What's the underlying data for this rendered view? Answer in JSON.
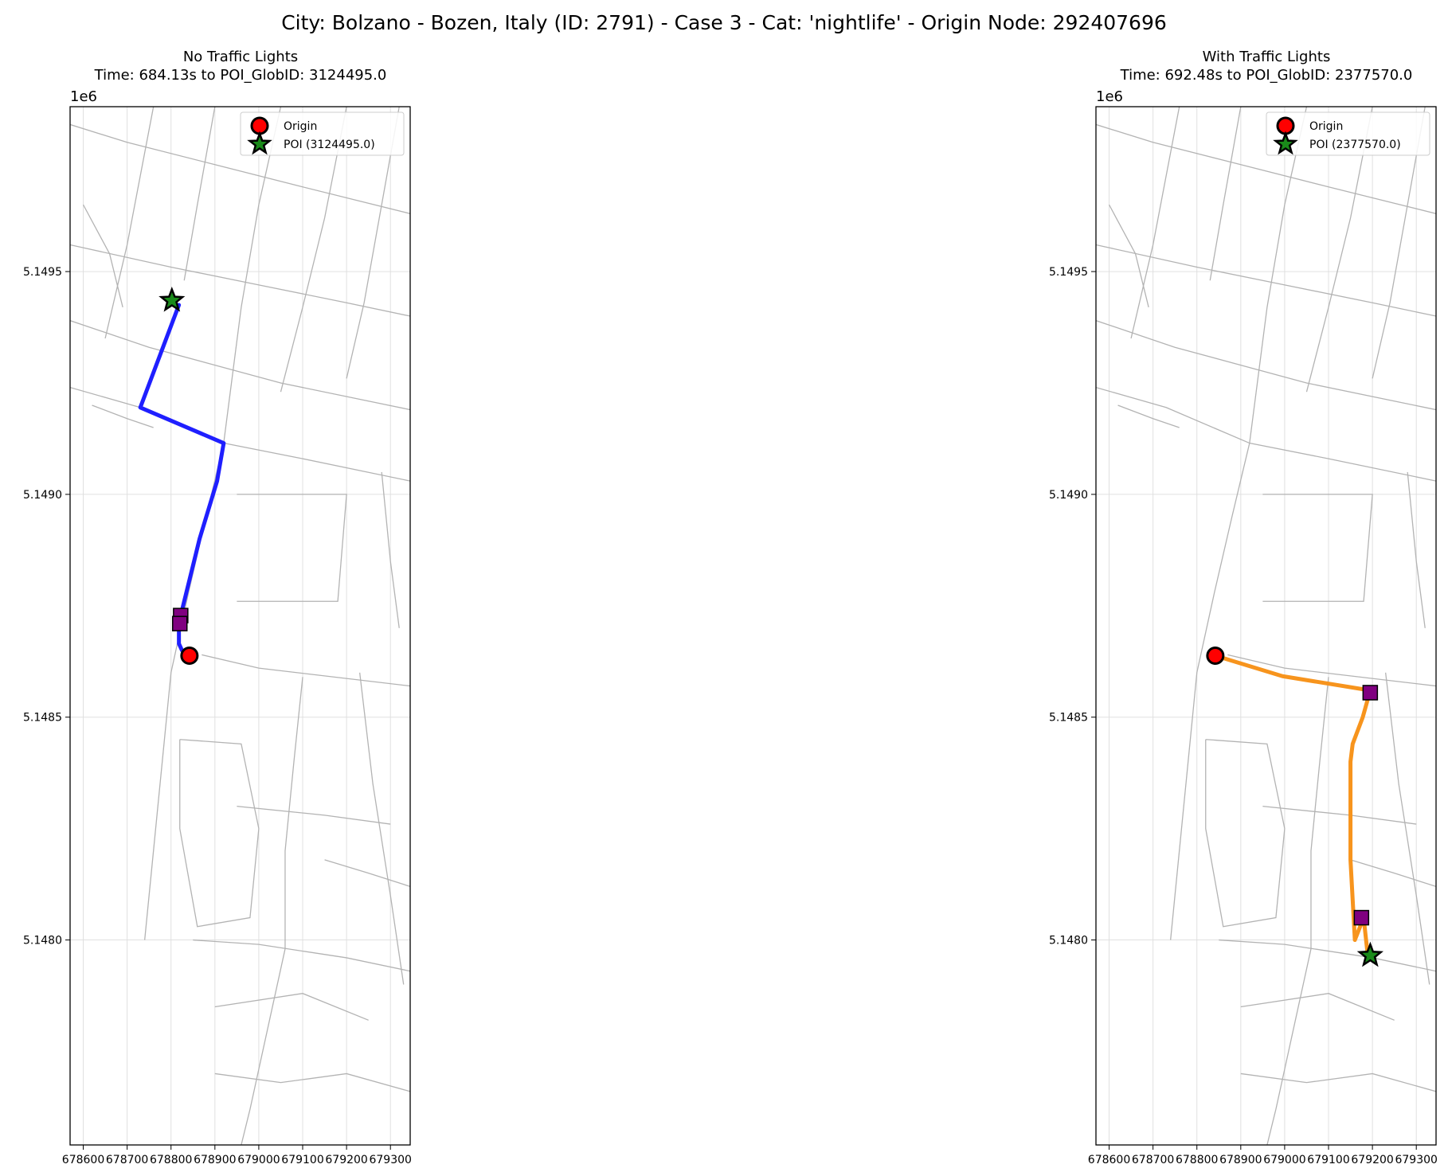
{
  "suptitle": "City: Bolzano - Bozen, Italy (ID: 2791) - Case 3 - Cat: 'nightlife' - Origin Node: 292407696",
  "chart_data": [
    {
      "type": "map",
      "title": "No Traffic Lights",
      "subtitle": "Time: 684.13s to POI_GlobID: 3124495.0",
      "offset_label": "1e6",
      "xlim": [
        678570,
        679345
      ],
      "ylim": [
        5147540,
        5149870
      ],
      "x_ticks": [
        678600,
        678700,
        678800,
        678900,
        679000,
        679100,
        679200,
        679300
      ],
      "x_tick_labels": [
        "678600",
        "678700",
        "678800",
        "678900",
        "679000",
        "679100",
        "679200",
        "679300"
      ],
      "y_ticks": [
        5148000,
        5148500,
        5149000,
        5149500
      ],
      "y_tick_labels": [
        "5.1480",
        "5.1485",
        "5.1490",
        "5.1495"
      ],
      "grid": true,
      "legend_position": "upper right",
      "legend": [
        {
          "label": "Origin",
          "marker": "circle",
          "color": "#ff0000"
        },
        {
          "label": "POI (3124495.0)",
          "marker": "star",
          "color": "#1a8a1a"
        }
      ],
      "route_color": "#1f1fff",
      "route": [
        [
          678842,
          5148638
        ],
        [
          678825,
          5148650
        ],
        [
          678818,
          5148665
        ],
        [
          678818,
          5148712
        ],
        [
          678860,
          5148880
        ],
        [
          678865,
          5148900
        ],
        [
          678905,
          5149030
        ],
        [
          678920,
          5149115
        ],
        [
          678730,
          5149195
        ],
        [
          678818,
          5149425
        ]
      ],
      "origin": [
        678842,
        5148638
      ],
      "poi": [
        678802,
        5149435
      ],
      "intermediate_nodes": [
        [
          678822,
          5148728
        ],
        [
          678820,
          5148710
        ]
      ]
    },
    {
      "type": "map",
      "title": "With Traffic Lights",
      "subtitle": "Time: 692.48s to POI_GlobID: 2377570.0",
      "offset_label": "1e6",
      "xlim": [
        678570,
        679345
      ],
      "ylim": [
        5147540,
        5149870
      ],
      "x_ticks": [
        678600,
        678700,
        678800,
        678900,
        679000,
        679100,
        679200,
        679300
      ],
      "x_tick_labels": [
        "678600",
        "678700",
        "678800",
        "678900",
        "679000",
        "679100",
        "679200",
        "679300"
      ],
      "y_ticks": [
        5148000,
        5148500,
        5149000,
        5149500
      ],
      "y_tick_labels": [
        "5.1480",
        "5.1485",
        "5.1490",
        "5.1495"
      ],
      "grid": true,
      "legend_position": "upper right",
      "legend": [
        {
          "label": "Origin",
          "marker": "circle",
          "color": "#ff0000"
        },
        {
          "label": "POI (2377570.0)",
          "marker": "star",
          "color": "#1a8a1a"
        }
      ],
      "route_color": "#f7941d",
      "route": [
        [
          678842,
          5148638
        ],
        [
          678995,
          5148592
        ],
        [
          679195,
          5148560
        ],
        [
          679178,
          5148500
        ],
        [
          679155,
          5148440
        ],
        [
          679150,
          5148400
        ],
        [
          679150,
          5148180
        ],
        [
          679160,
          5148000
        ],
        [
          679180,
          5148050
        ],
        [
          679190,
          5147960
        ]
      ],
      "origin": [
        678842,
        5148638
      ],
      "poi": [
        679195,
        5147965
      ],
      "intermediate_nodes": [
        [
          679195,
          5148555
        ],
        [
          679175,
          5148050
        ]
      ]
    }
  ]
}
